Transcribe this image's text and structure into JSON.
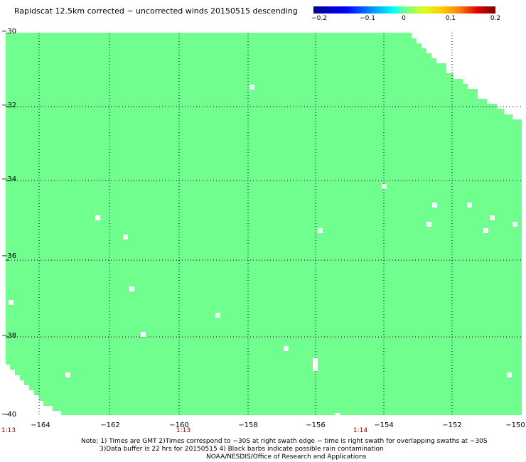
{
  "title": "Rapidscat 12.5km corrected − uncorrected winds 20150515 descending",
  "colorbar": {
    "ticks": [
      "−0.2",
      "−0.1",
      "0",
      "0.1",
      "0.2"
    ],
    "tick_values": [
      -0.2,
      -0.1,
      0,
      0.1,
      0.2
    ],
    "range": [
      -0.2,
      0.2
    ]
  },
  "map": {
    "fill_color": "#70ff8e",
    "grid": "dotted",
    "lon_range": [
      -164.8,
      -150
    ],
    "lat_range": [
      -40,
      -30
    ]
  },
  "lat_labels": [
    "−30",
    "−32",
    "−34",
    "−36",
    "−38",
    "−40"
  ],
  "lon_labels": [
    "−164",
    "−162",
    "−160",
    "−158",
    "−156",
    "−154",
    "−152",
    "−150"
  ],
  "time_labels": [
    "1:13",
    "1:13",
    "1:14"
  ],
  "notes": [
    "Note: 1) Times are GMT 2)Times correspond to −30S at right swath edge − time is right swath for overlapping swaths at −30S",
    "3)Data buffer is 22 hrs for 20150515 4) Black barbs indicate possible rain contamination",
    "NOAA/NESDIS/Office of Research and Applications"
  ]
}
